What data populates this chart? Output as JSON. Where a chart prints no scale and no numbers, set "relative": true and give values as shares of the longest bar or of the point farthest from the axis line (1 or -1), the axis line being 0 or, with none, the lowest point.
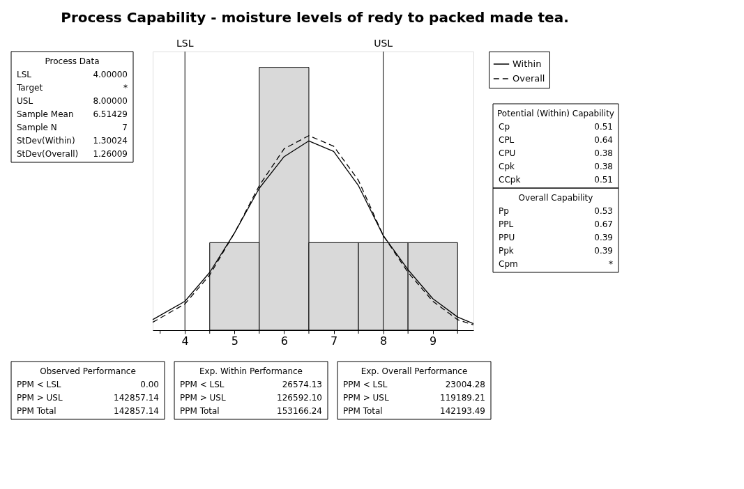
{
  "chart_data": {
    "type": "histogram",
    "title": "Process Capability - moisture levels of redy to packed made tea.",
    "relative": true,
    "color": "#d9d9d9",
    "bins": [
      4.5,
      5.5,
      6.5,
      7.5,
      8.5,
      9.5
    ],
    "values": [
      0.333,
      1,
      0.333,
      0.333,
      0.333
    ],
    "series": [
      {
        "name": "Within",
        "type": "line",
        "color": "#000000",
        "line_style": "solid",
        "x": [
          3.35,
          4,
          4.5,
          5,
          5.5,
          6,
          6.5,
          7,
          7.5,
          8,
          8.5,
          9,
          9.5,
          9.82
        ],
        "values": [
          0.04,
          0.11,
          0.22,
          0.37,
          0.54,
          0.66,
          0.72,
          0.68,
          0.55,
          0.36,
          0.23,
          0.12,
          0.05,
          0.025
        ]
      },
      {
        "name": "Overall",
        "type": "line",
        "color": "#000000",
        "line_style": "dashed",
        "x": [
          3.35,
          4,
          4.5,
          5,
          5.5,
          6,
          6.5,
          7,
          7.5,
          8,
          8.5,
          9,
          9.5,
          9.82
        ],
        "values": [
          0.03,
          0.1,
          0.21,
          0.37,
          0.55,
          0.69,
          0.74,
          0.7,
          0.57,
          0.36,
          0.22,
          0.11,
          0.04,
          0.02
        ]
      }
    ],
    "xlim": [
      3.35,
      9.82
    ],
    "xticks": [
      {
        "value": 3.5,
        "label": null
      },
      4,
      {
        "value": 4.5,
        "label": null
      },
      5,
      {
        "value": 5.5,
        "label": null
      },
      6,
      {
        "value": 6.5,
        "label": null
      },
      7,
      {
        "value": 7.5,
        "label": null
      },
      8,
      {
        "value": 8.5,
        "label": null
      },
      9,
      {
        "value": 9.5,
        "label": null
      }
    ],
    "ref_lines": [
      {
        "axis": "x",
        "value": 4,
        "label": "LSL",
        "color": "#000000"
      },
      {
        "axis": "x",
        "value": 8,
        "label": "USL",
        "color": "#000000"
      }
    ],
    "grid": false,
    "legend": "top right",
    "annotations": [
      "Process Data",
      "LSL 4.00000",
      "Target *",
      "USL 8.00000",
      "Sample Mean 6.51429",
      "Sample N 7",
      "StDev(Within) 1.30024",
      "StDev(Overall) 1.26009",
      "Potential (Within) Capability",
      "Cp 0.51",
      "CPL 0.64",
      "CPU 0.38",
      "Cpk 0.38",
      "CCpk 0.51",
      "Overall Capability",
      "Pp 0.53",
      "PPL 0.67",
      "PPU 0.39",
      "Ppk 0.39",
      "Cpm *",
      "Observed Performance",
      "PPM < LSL 0.00",
      "PPM > USL 142857.14",
      "PPM Total 142857.14",
      "Exp. Within Performance",
      "PPM < LSL 26574.13",
      "PPM > USL 126592.10",
      "PPM Total 153166.24",
      "Exp. Overall Performance",
      "PPM < LSL 23004.28",
      "PPM > USL 119189.21",
      "PPM Total 142193.49"
    ]
  }
}
